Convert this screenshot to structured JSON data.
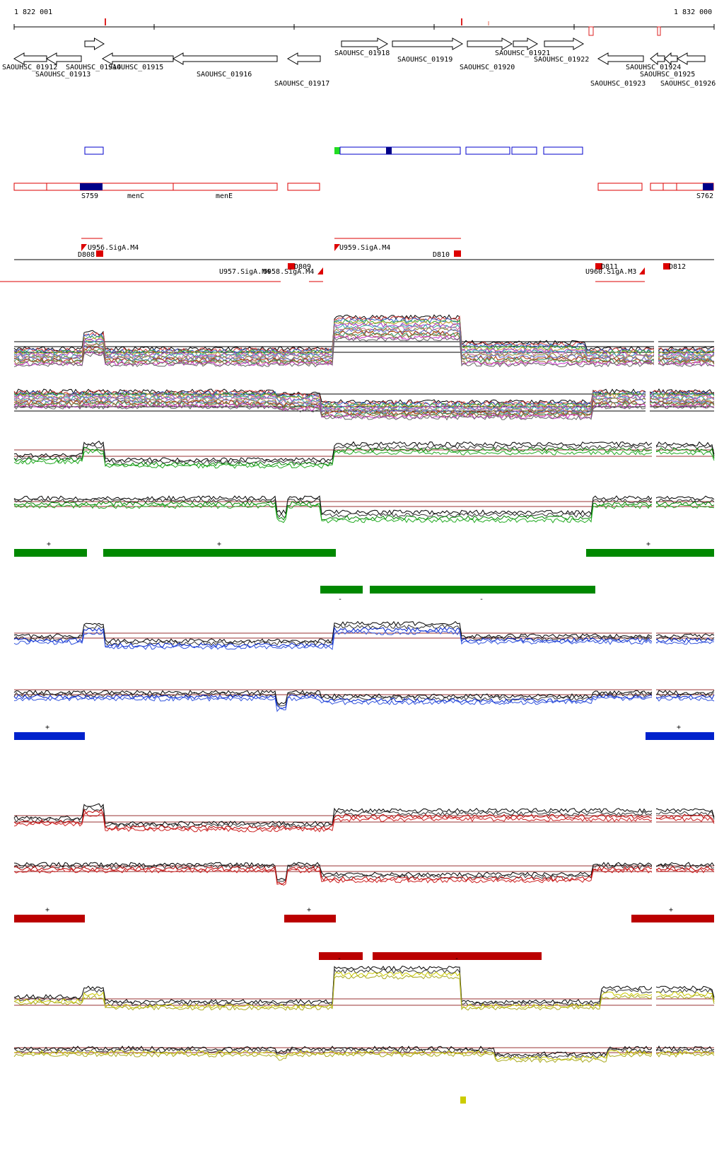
{
  "coords": {
    "start": "1 822 001",
    "end": "1 832 000"
  },
  "genes": [
    {
      "label": "SAOUHSC_01912",
      "from": 20,
      "to": 66,
      "strand": "-"
    },
    {
      "label": "SAOUHSC_01913",
      "from": 66,
      "to": 115,
      "strand": "-"
    },
    {
      "label": "SAOUHSC_01914",
      "from": 120,
      "to": 147,
      "strand": "+"
    },
    {
      "label": "SAOUHSC_01915",
      "from": 145,
      "to": 245,
      "strand": "-"
    },
    {
      "label": "SAOUHSC_01916",
      "from": 245,
      "to": 392,
      "strand": "-"
    },
    {
      "label": "SAOUHSC_01917",
      "from": 407,
      "to": 453,
      "strand": "-"
    },
    {
      "label": "SAOUHSC_01918",
      "from": 483,
      "to": 548,
      "strand": "+"
    },
    {
      "label": "SAOUHSC_01919",
      "from": 555,
      "to": 654,
      "strand": "+"
    },
    {
      "label": "SAOUHSC_01920",
      "from": 661,
      "to": 724,
      "strand": "+"
    },
    {
      "label": "SAOUHSC_01921",
      "from": 726,
      "to": 760,
      "strand": "+"
    },
    {
      "label": "SAOUHSC_01922",
      "from": 770,
      "to": 825,
      "strand": "+"
    },
    {
      "label": "SAOUHSC_01923",
      "from": 846,
      "to": 910,
      "strand": "-"
    },
    {
      "label": "SAOUHSC_01924",
      "from": 920,
      "to": 940,
      "strand": "-"
    },
    {
      "label": "SAOUHSC_01925",
      "from": 940,
      "to": 958,
      "strand": "-"
    },
    {
      "label": "SAOUHSC_01926",
      "from": 958,
      "to": 997,
      "strand": "-"
    }
  ],
  "rna_features": [
    {
      "label": "S759"
    },
    {
      "label": "menC"
    },
    {
      "label": "menE"
    },
    {
      "label": "S762"
    }
  ],
  "promoters": [
    {
      "label": "U956.SigA.M4"
    },
    {
      "label": "D808"
    },
    {
      "label": "U957.SigA.M4"
    },
    {
      "label": "U958.SigA.M4"
    },
    {
      "label": "D809"
    },
    {
      "label": "U959.SigA.M4"
    },
    {
      "label": "D810"
    },
    {
      "label": "D811"
    },
    {
      "label": "U960.SigA.M3"
    },
    {
      "label": "D812"
    }
  ],
  "strand_marks": {
    "plus": "+",
    "minus": "-"
  },
  "colors": {
    "gene_outline": "#000000",
    "transcript_blue": "#0000cc",
    "transcript_red": "#dd0000",
    "green": "#008800",
    "blue": "#0022cc",
    "darkred": "#bb0000",
    "yellow": "#cccc00",
    "threshold": "#993333",
    "bright_green": "#22dd22",
    "navy": "#000088"
  }
}
